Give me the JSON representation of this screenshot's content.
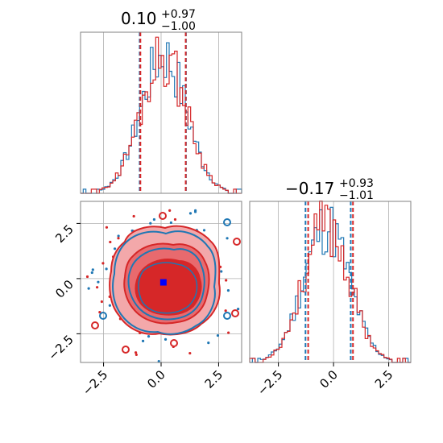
{
  "colors": {
    "series_blue": "#1f77b4",
    "series_red": "#d62728",
    "red_fill_light": "#f3a8aa",
    "red_fill_mid": "#e86a6e",
    "marker": "#0000ff",
    "grid": "#b0b0b0",
    "axes": "#808080"
  },
  "chart_data": [
    {
      "type": "histogram",
      "panel": "top-left",
      "title": {
        "value": "0.10",
        "upper": "+0.97",
        "lower": "−1.00"
      },
      "x_range": [
        -3.5,
        3.5
      ],
      "grid": true,
      "series": [
        {
          "color": "series_blue",
          "quantile_lines": [
            -0.93,
            1.08
          ]
        },
        {
          "color": "series_red",
          "quantile_lines": [
            -0.9,
            1.07
          ]
        }
      ]
    },
    {
      "type": "contour",
      "panel": "bottom-left",
      "x_range": [
        -3.5,
        3.5
      ],
      "y_range": [
        -3.8,
        3.5
      ],
      "x_ticks": [
        "−2.5",
        "0.0",
        "2.5"
      ],
      "y_ticks": [
        "2.5",
        "0.0",
        "−2.5"
      ],
      "x_tick_values": [
        -2.5,
        0.0,
        2.5
      ],
      "y_tick_values": [
        2.5,
        0.0,
        -2.5
      ],
      "truth": {
        "x": 0.1,
        "y": -0.17
      },
      "grid": true
    },
    {
      "type": "histogram",
      "panel": "bottom-right",
      "title": {
        "value": "−0.17",
        "upper": "+0.93",
        "lower": "−1.01"
      },
      "x_range": [
        -3.8,
        3.5
      ],
      "x_ticks": [
        "−2.5",
        "0.0",
        "2.5"
      ],
      "x_tick_values": [
        -2.5,
        0.0,
        2.5
      ],
      "grid": true,
      "series": [
        {
          "color": "series_blue",
          "quantile_lines": [
            -1.27,
            0.78
          ]
        },
        {
          "color": "series_red",
          "quantile_lines": [
            -1.15,
            0.88
          ]
        }
      ]
    }
  ]
}
